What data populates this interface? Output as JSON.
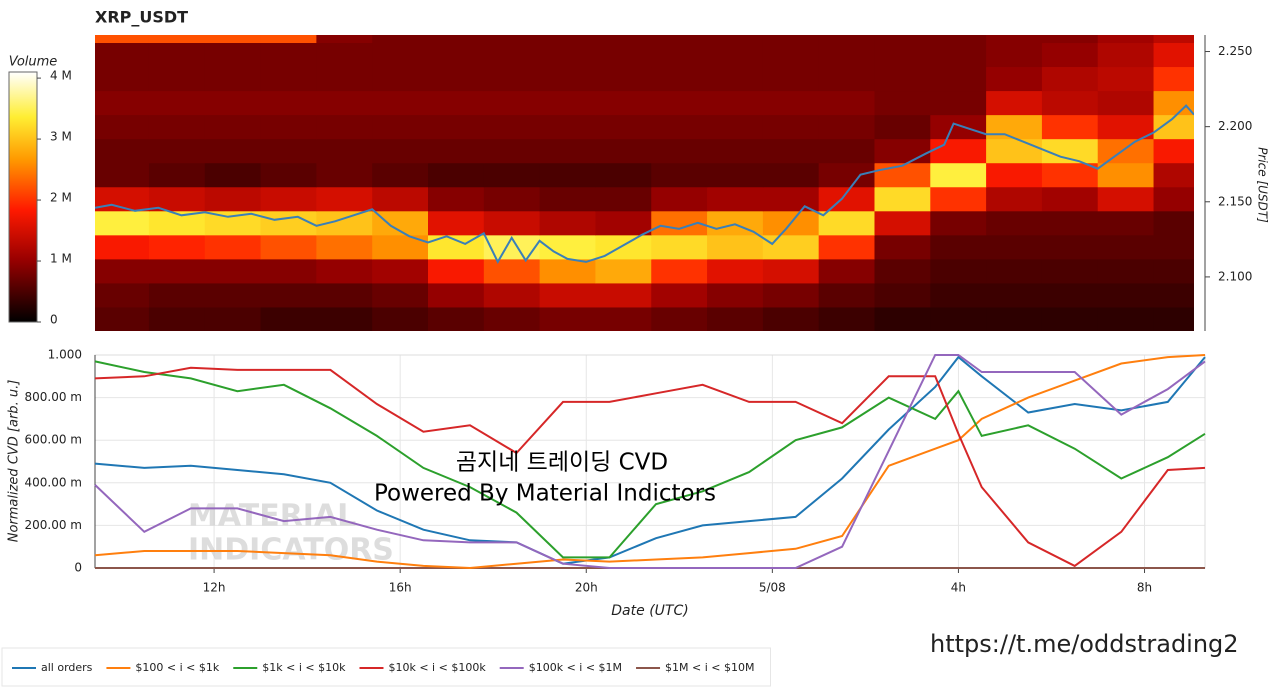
{
  "chart_data": [
    {
      "type": "heatmap",
      "title": "XRP_USDT",
      "x_bins": [
        9.44,
        10.6,
        11.8,
        13,
        14.2,
        15.4,
        16.6,
        17.8,
        19,
        20.2,
        21.4,
        22.6,
        23.8,
        25,
        26.2,
        27.4,
        28.6,
        29.8,
        31,
        32.2,
        33.07
      ],
      "y_bins": [
        2.064,
        2.08,
        2.096,
        2.112,
        2.128,
        2.144,
        2.16,
        2.176,
        2.192,
        2.208,
        2.224,
        2.24,
        2.256,
        2.272
      ],
      "z": [
        [
          600000,
          500000,
          500000,
          400000,
          400000,
          500000,
          600000,
          700000,
          800000,
          800000,
          700000,
          600000,
          500000,
          400000,
          300000,
          300000,
          300000,
          300000,
          300000,
          300000
        ],
        [
          700000,
          600000,
          600000,
          600000,
          600000,
          700000,
          1000000,
          1200000,
          1400000,
          1400000,
          1100000,
          900000,
          800000,
          600000,
          500000,
          400000,
          400000,
          400000,
          400000,
          400000
        ],
        [
          900000,
          900000,
          900000,
          900000,
          1000000,
          1100000,
          1800000,
          2200000,
          2600000,
          2800000,
          2000000,
          1600000,
          1500000,
          900000,
          600000,
          500000,
          500000,
          500000,
          500000,
          500000
        ],
        [
          1800000,
          1900000,
          2000000,
          2200000,
          2400000,
          2600000,
          3300000,
          3500000,
          3400000,
          3300000,
          3200000,
          3000000,
          3100000,
          2000000,
          800000,
          600000,
          600000,
          600000,
          600000,
          600000
        ],
        [
          3400000,
          3300000,
          3200000,
          3100000,
          3000000,
          2800000,
          1600000,
          1400000,
          1200000,
          1100000,
          2400000,
          2800000,
          2600000,
          3200000,
          1500000,
          800000,
          700000,
          700000,
          700000,
          600000
        ],
        [
          1500000,
          1400000,
          1300000,
          1400000,
          1500000,
          1300000,
          900000,
          800000,
          700000,
          700000,
          1000000,
          1100000,
          1100000,
          1600000,
          3200000,
          2000000,
          1200000,
          1100000,
          1500000,
          1000000
        ],
        [
          700000,
          600000,
          500000,
          600000,
          700000,
          600000,
          500000,
          500000,
          500000,
          500000,
          600000,
          600000,
          600000,
          800000,
          2200000,
          3400000,
          1800000,
          2000000,
          2600000,
          1200000
        ],
        [
          700000,
          700000,
          700000,
          700000,
          700000,
          700000,
          700000,
          700000,
          700000,
          700000,
          700000,
          700000,
          700000,
          700000,
          900000,
          1800000,
          3000000,
          3200000,
          2400000,
          1800000
        ],
        [
          800000,
          800000,
          800000,
          800000,
          800000,
          800000,
          800000,
          800000,
          800000,
          800000,
          800000,
          800000,
          800000,
          800000,
          700000,
          1000000,
          2800000,
          2000000,
          1600000,
          3000000
        ],
        [
          900000,
          900000,
          900000,
          900000,
          900000,
          900000,
          900000,
          900000,
          900000,
          900000,
          900000,
          900000,
          900000,
          900000,
          800000,
          800000,
          1500000,
          1300000,
          1200000,
          2600000
        ],
        [
          800000,
          800000,
          800000,
          800000,
          800000,
          800000,
          800000,
          800000,
          800000,
          800000,
          800000,
          800000,
          800000,
          800000,
          800000,
          800000,
          1000000,
          1200000,
          1300000,
          2000000
        ],
        [
          800000,
          800000,
          800000,
          800000,
          800000,
          800000,
          800000,
          800000,
          800000,
          800000,
          800000,
          800000,
          800000,
          800000,
          800000,
          800000,
          900000,
          1000000,
          1200000,
          1600000
        ],
        [
          2200000,
          2200000,
          2200000,
          2200000,
          900000,
          800000,
          800000,
          800000,
          800000,
          800000,
          800000,
          800000,
          800000,
          800000,
          800000,
          800000,
          900000,
          900000,
          1100000,
          1300000
        ]
      ],
      "colormap": "hot",
      "clim": [
        0,
        4100000
      ],
      "colorbar_title": "Volume",
      "colorbar_ticks": [
        0,
        {
          "value": 1000000,
          "label": "1 M"
        },
        {
          "value": 2000000,
          "label": "2 M"
        },
        {
          "value": 3000000,
          "label": "3 M"
        },
        {
          "value": 4000000,
          "label": "4 M"
        }
      ],
      "xlim": [
        9.44,
        33.07
      ],
      "ylim": [
        2.064,
        2.261
      ],
      "yticks": [
        {
          "value": 2.1,
          "label": "2.100"
        },
        {
          "value": 2.15,
          "label": "2.150"
        },
        {
          "value": 2.2,
          "label": "2.200"
        },
        {
          "value": 2.25,
          "label": "2.250"
        }
      ],
      "ylabel": "Price [USDT]",
      "line": {
        "color": "#3a7fb8",
        "x": [
          9.44,
          9.8,
          10.3,
          10.8,
          11.3,
          11.8,
          12.3,
          12.8,
          13.3,
          13.8,
          14.2,
          14.6,
          15.0,
          15.4,
          15.8,
          16.2,
          16.6,
          17.0,
          17.4,
          17.8,
          18.1,
          18.4,
          18.7,
          19.0,
          19.3,
          19.6,
          20.0,
          20.4,
          20.8,
          21.2,
          21.6,
          22.0,
          22.4,
          22.8,
          23.2,
          23.6,
          24.0,
          24.3,
          24.7,
          25.1,
          25.5,
          25.9,
          26.3,
          26.8,
          27.3,
          27.7,
          27.9,
          28.2,
          28.6,
          29.0,
          29.4,
          29.8,
          30.2,
          30.6,
          31.0,
          31.4,
          31.8,
          32.2,
          32.6,
          32.9,
          33.07
        ],
        "values": [
          2.146,
          2.148,
          2.144,
          2.146,
          2.141,
          2.143,
          2.14,
          2.142,
          2.138,
          2.14,
          2.134,
          2.137,
          2.141,
          2.145,
          2.134,
          2.127,
          2.123,
          2.127,
          2.122,
          2.129,
          2.11,
          2.126,
          2.111,
          2.124,
          2.117,
          2.112,
          2.11,
          2.114,
          2.121,
          2.128,
          2.134,
          2.132,
          2.136,
          2.132,
          2.135,
          2.13,
          2.122,
          2.132,
          2.147,
          2.141,
          2.152,
          2.168,
          2.171,
          2.174,
          2.182,
          2.188,
          2.202,
          2.199,
          2.195,
          2.195,
          2.19,
          2.185,
          2.18,
          2.177,
          2.172,
          2.181,
          2.19,
          2.196,
          2.205,
          2.214,
          2.208
        ]
      }
    },
    {
      "type": "line",
      "x": [
        9.44,
        10.5,
        11.5,
        12.5,
        13.5,
        14.5,
        15.5,
        16.5,
        17.5,
        18.5,
        19.5,
        20.5,
        21.5,
        22.5,
        23.5,
        24.5,
        25.5,
        26.5,
        27.5,
        28.0,
        28.5,
        29.5,
        30.5,
        31.5,
        32.5,
        33.3
      ],
      "series": [
        {
          "name": "$1M < i < $10M",
          "color": "#8c564b",
          "values": [
            0,
            0,
            0,
            0,
            0,
            0,
            0,
            0,
            0,
            0,
            0,
            0,
            0,
            0,
            0,
            0,
            0,
            0,
            0,
            0,
            0,
            0,
            0,
            0,
            0,
            0
          ]
        },
        {
          "name": "all orders",
          "color": "#1f77b4",
          "values": [
            0.49,
            0.47,
            0.48,
            0.46,
            0.44,
            0.4,
            0.27,
            0.18,
            0.13,
            0.12,
            0.02,
            0.05,
            0.14,
            0.2,
            0.22,
            0.24,
            0.42,
            0.65,
            0.85,
            0.99,
            0.9,
            0.73,
            0.77,
            0.74,
            0.78,
            0.99
          ]
        },
        {
          "name": "$100 < i < $1k",
          "color": "#ff7f0e",
          "values": [
            0.06,
            0.08,
            0.08,
            0.08,
            0.07,
            0.06,
            0.03,
            0.01,
            0,
            0.02,
            0.04,
            0.03,
            0.04,
            0.05,
            0.07,
            0.09,
            0.15,
            0.48,
            0.56,
            0.6,
            0.7,
            0.8,
            0.88,
            0.96,
            0.99,
            1
          ]
        },
        {
          "name": "$1k < i < $10k",
          "color": "#2ca02c",
          "values": [
            0.97,
            0.92,
            0.89,
            0.83,
            0.86,
            0.75,
            0.62,
            0.47,
            0.38,
            0.26,
            0.05,
            0.05,
            0.3,
            0.36,
            0.45,
            0.6,
            0.66,
            0.8,
            0.7,
            0.83,
            0.62,
            0.67,
            0.56,
            0.42,
            0.52,
            0.63
          ]
        },
        {
          "name": "$10k < i < $100k",
          "color": "#d62728",
          "values": [
            0.89,
            0.9,
            0.94,
            0.93,
            0.93,
            0.93,
            0.77,
            0.64,
            0.67,
            0.54,
            0.78,
            0.78,
            0.82,
            0.86,
            0.78,
            0.78,
            0.68,
            0.9,
            0.9,
            0.63,
            0.38,
            0.12,
            0.01,
            0.17,
            0.46,
            0.47
          ]
        },
        {
          "name": "$100k < i < $1M",
          "color": "#9467bd",
          "values": [
            0.39,
            0.17,
            0.28,
            0.28,
            0.22,
            0.24,
            0.18,
            0.13,
            0.12,
            0.12,
            0.02,
            0,
            0,
            0,
            0,
            0,
            0.1,
            0.55,
            1,
            1,
            0.92,
            0.92,
            0.92,
            0.72,
            0.84,
            0.97
          ]
        }
      ],
      "legend_order": [
        1,
        2,
        3,
        4,
        5,
        0
      ],
      "xlim": [
        9.44,
        33.3
      ],
      "ylim": [
        0,
        1
      ],
      "xticks": [
        {
          "value": 12,
          "label": "12h"
        },
        {
          "value": 16,
          "label": "16h"
        },
        {
          "value": 20,
          "label": "20h"
        },
        {
          "value": 24,
          "label": "5/08"
        },
        {
          "value": 28,
          "label": "4h"
        },
        {
          "value": 32,
          "label": "8h"
        }
      ],
      "yticks": [
        0,
        {
          "value": 0.2,
          "label": "200.00 m"
        },
        {
          "value": 0.4,
          "label": "400.00 m"
        },
        {
          "value": 0.6,
          "label": "600.00 m"
        },
        {
          "value": 0.8,
          "label": "800.00 m"
        },
        {
          "value": 1,
          "label": "1.000"
        }
      ],
      "xlabel": "Date (UTC)",
      "ylabel": "Normalized CVD [arb. u.]",
      "grid": true,
      "legend": "bottom-left",
      "watermark": [
        "MATERIAL",
        "INDICATORS"
      ],
      "annotations": [
        "곰지네 트레이딩 CVD",
        "Powered By Material Indictors"
      ]
    }
  ],
  "link": "https://t.me/oddstrading2"
}
